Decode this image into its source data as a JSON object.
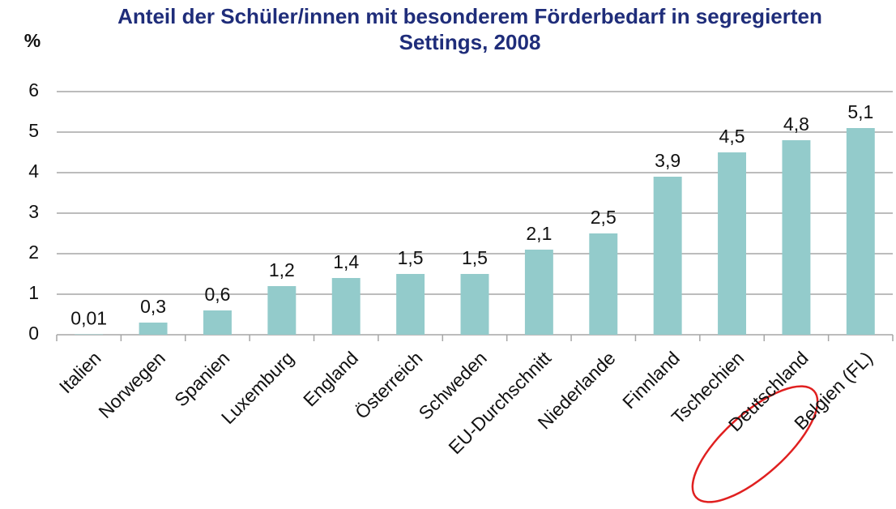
{
  "chart_data": {
    "type": "bar",
    "title": "Anteil der Schüler/innen mit besonderem Förderbedarf in segregierten Settings, 2008",
    "y_label": "%",
    "categories": [
      "Italien",
      "Norwegen",
      "Spanien",
      "Luxemburg",
      "England",
      "Österreich",
      "Schweden",
      "EU-Durchschnitt",
      "Niederlande",
      "Finnland",
      "Tschechien",
      "Deutschland",
      "Belgien (FL)"
    ],
    "values": [
      0.01,
      0.3,
      0.6,
      1.2,
      1.4,
      1.5,
      1.5,
      2.1,
      2.5,
      3.9,
      4.5,
      4.8,
      5.1
    ],
    "value_labels": [
      "0,01",
      "0,3",
      "0,6",
      "1,2",
      "1,4",
      "1,5",
      "1,5",
      "2,1",
      "2,5",
      "3,9",
      "4,5",
      "4,8",
      "5,1"
    ],
    "color": "#93cbcb",
    "ylim": [
      0,
      6
    ],
    "yticks": [
      0,
      1,
      2,
      3,
      4,
      5,
      6
    ],
    "grid": true
  }
}
